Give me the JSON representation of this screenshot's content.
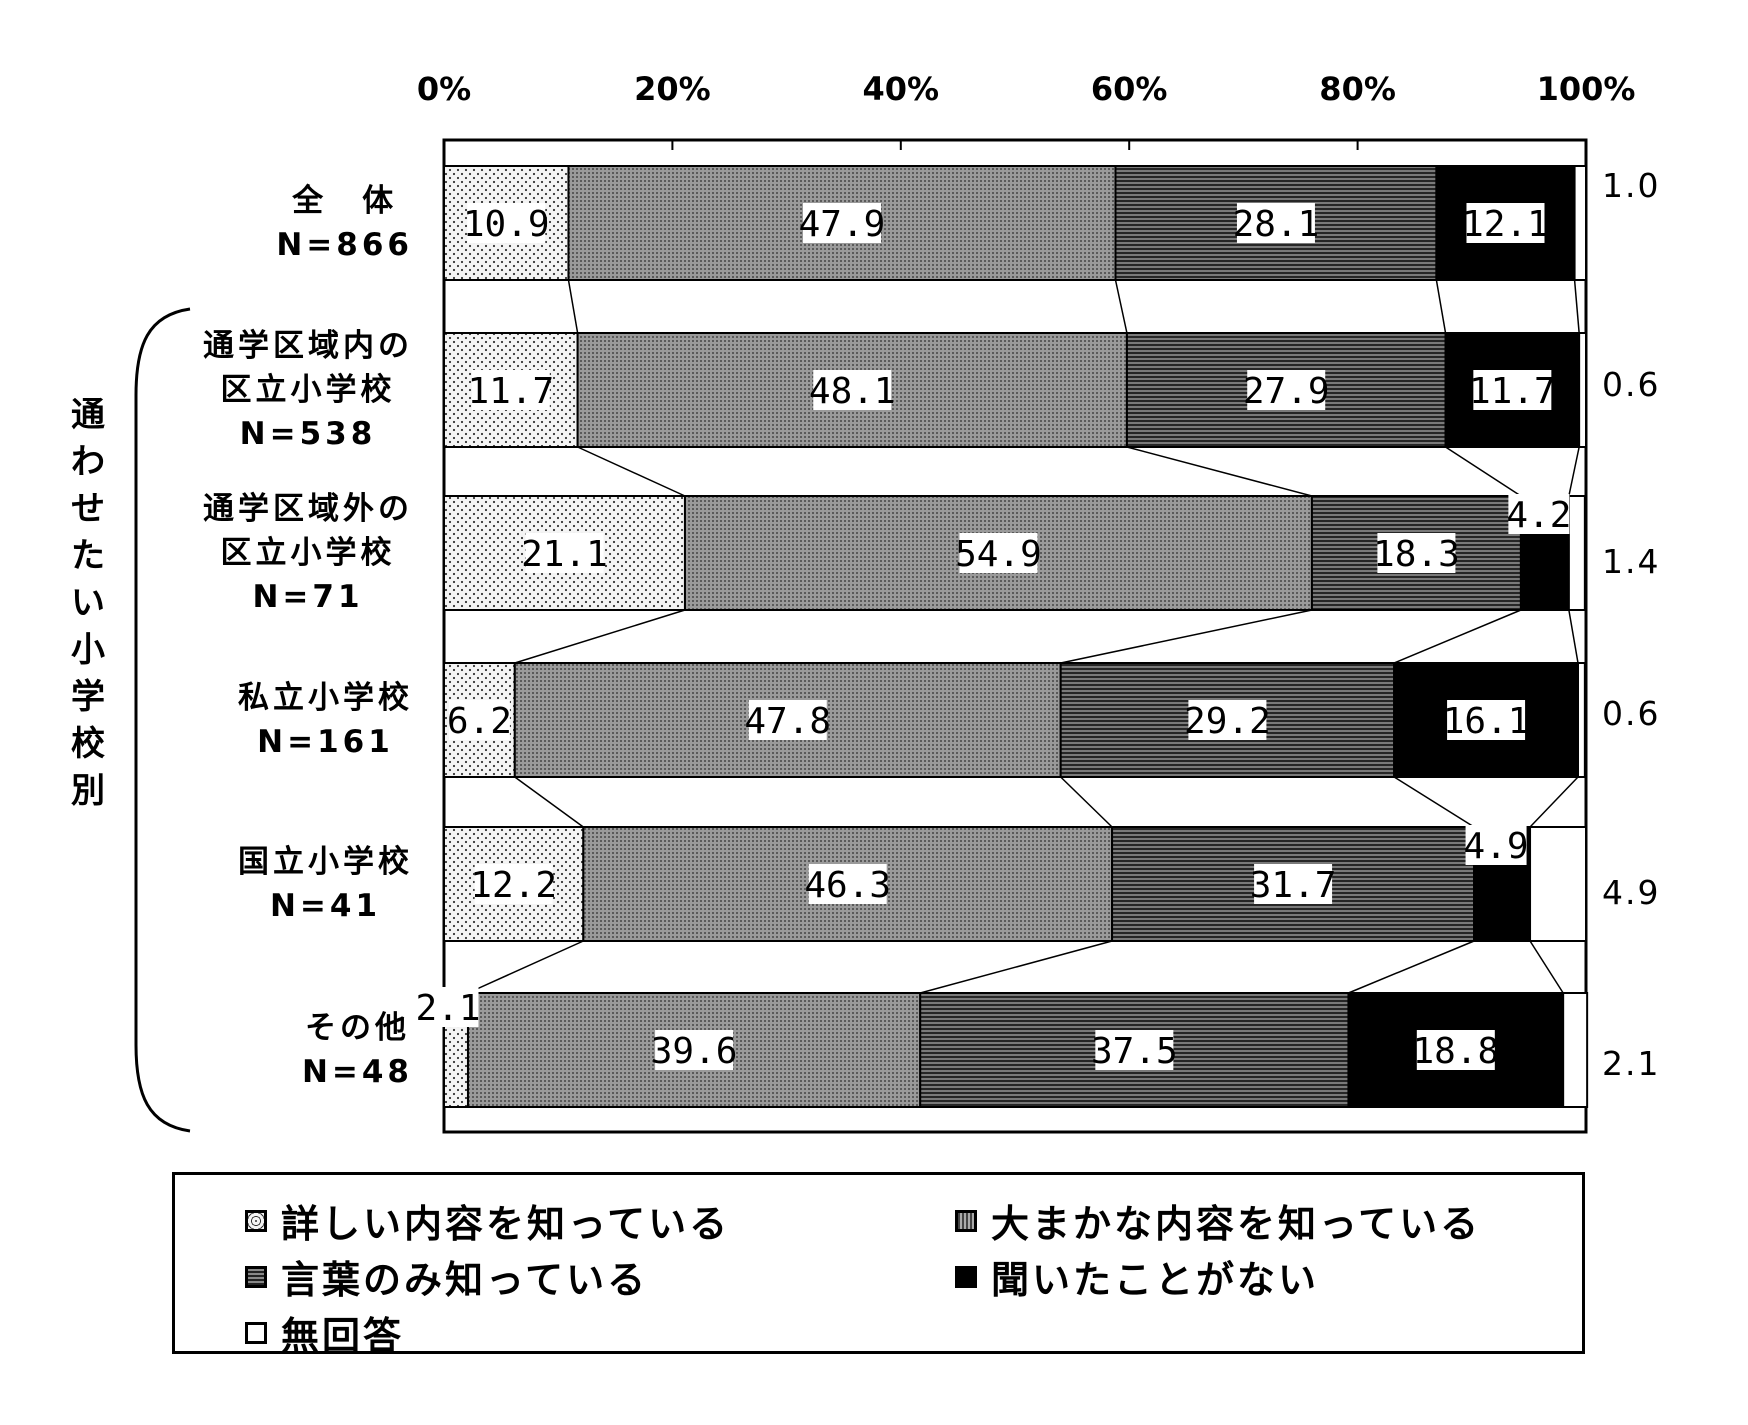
{
  "chart_data": {
    "type": "bar",
    "orientation": "horizontal-stacked-100",
    "x_ticks": [
      "0%",
      "20%",
      "40%",
      "60%",
      "80%",
      "100%"
    ],
    "xlim": [
      0,
      100
    ],
    "group_title": "通わせたい小学校別",
    "categories": [
      {
        "lines": [
          "全　体",
          "N=866"
        ]
      },
      {
        "lines": [
          "通学区域内の",
          "区立小学校",
          "N=538"
        ]
      },
      {
        "lines": [
          "通学区域外の",
          "区立小学校",
          "N=71"
        ]
      },
      {
        "lines": [
          "私立小学校",
          "N=161"
        ]
      },
      {
        "lines": [
          "国立小学校",
          "N=41"
        ]
      },
      {
        "lines": [
          "その他",
          "N=48"
        ]
      }
    ],
    "series": [
      {
        "name": "詳しい内容を知っている",
        "values": [
          10.9,
          11.7,
          21.1,
          6.2,
          12.2,
          2.1
        ],
        "labels": [
          "10.9",
          "11.7",
          "21.1",
          "6.2",
          "12.2",
          "2.1"
        ]
      },
      {
        "name": "大まかな内容を知っている",
        "values": [
          47.9,
          48.1,
          54.9,
          47.8,
          46.3,
          39.6
        ],
        "labels": [
          "47.9",
          "48.1",
          "54.9",
          "47.8",
          "46.3",
          "39.6"
        ]
      },
      {
        "name": "言葉のみ知っている",
        "values": [
          28.1,
          27.9,
          18.3,
          29.2,
          31.7,
          37.5
        ],
        "labels": [
          "28.1",
          "27.9",
          "18.3",
          "29.2",
          "31.7",
          "37.5"
        ]
      },
      {
        "name": "聞いたことがない",
        "values": [
          12.1,
          11.7,
          4.2,
          16.1,
          4.9,
          18.8
        ],
        "labels": [
          "12.1",
          "11.7",
          "4.2",
          "16.1",
          "4.9",
          "18.8"
        ]
      },
      {
        "name": "無回答",
        "values": [
          1.0,
          0.6,
          1.4,
          0.6,
          4.9,
          2.1
        ],
        "labels": [
          "1.0",
          "0.6",
          "1.4",
          "0.6",
          "4.9",
          "2.1"
        ]
      }
    ],
    "legend_position": "bottom",
    "grid": false
  }
}
